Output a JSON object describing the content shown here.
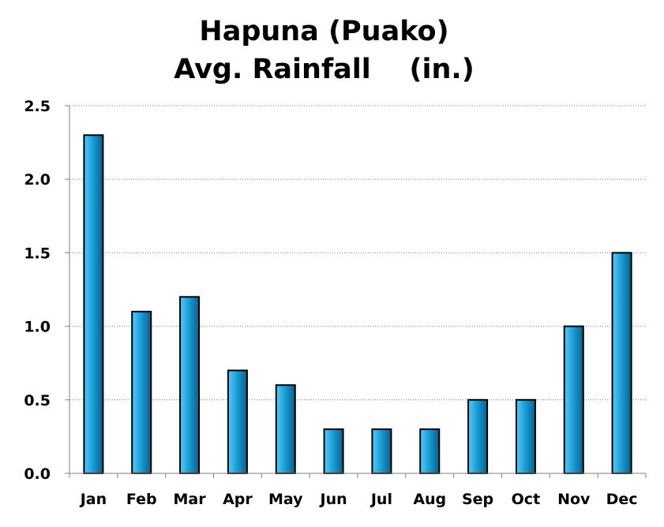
{
  "chart_data": {
    "type": "bar",
    "title_lines": [
      "Hapuna (Puako)",
      "Avg. Rainfall    (in.)"
    ],
    "categories": [
      "Jan",
      "Feb",
      "Mar",
      "Apr",
      "May",
      "Jun",
      "Jul",
      "Aug",
      "Sep",
      "Oct",
      "Nov",
      "Dec"
    ],
    "values": [
      2.3,
      1.1,
      1.2,
      0.7,
      0.6,
      0.3,
      0.3,
      0.3,
      0.5,
      0.5,
      1.0,
      1.5
    ],
    "ylim": [
      0,
      2.5
    ],
    "yticks": [
      "0.0",
      "0.5",
      "1.0",
      "1.5",
      "2.0",
      "2.5"
    ],
    "xlabel": "",
    "ylabel": "",
    "grid": "horizontal dotted",
    "legend": "none",
    "colors": {
      "bar_light": "#5ec8f4",
      "bar_mid": "#1a9fd8",
      "bar_dark": "#0a5f8c",
      "bar_outline": "#000000",
      "grid": "#808080",
      "axis": "#808080"
    }
  }
}
